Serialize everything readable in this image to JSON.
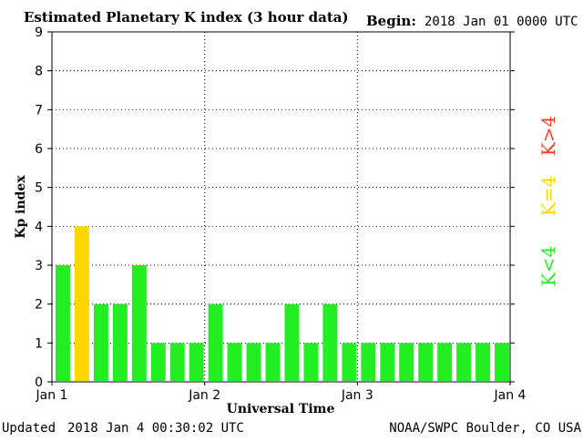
{
  "header": {
    "title": "Estimated Planetary K index (3 hour data)",
    "begin_label": "Begin:",
    "begin_value": "2018 Jan 01 0000 UTC"
  },
  "footer": {
    "updated_label": "Updated",
    "updated_value": "2018 Jan  4 00:30:02 UTC",
    "source": "NOAA/SWPC Boulder, CO USA"
  },
  "legend": {
    "high": "K>4",
    "equal": "K=4",
    "low": "K<4"
  },
  "colors": {
    "below_4": "#22ee22",
    "equal_4": "#ffd700",
    "above_4": "#ff3b1f",
    "grid": "#000000"
  },
  "chart_data": {
    "type": "bar",
    "title": "Estimated Planetary K index (3 hour data)",
    "xlabel": "Universal Time",
    "ylabel": "Kp index",
    "ylim": [
      0,
      9
    ],
    "yticks": [
      "0",
      "1",
      "2",
      "3",
      "4",
      "5",
      "6",
      "7",
      "8",
      "9"
    ],
    "xticks": [
      "Jan 1",
      "Jan 2",
      "Jan 3",
      "Jan 4"
    ],
    "grid": true,
    "interval_hours": 3,
    "values": [
      3,
      4,
      2,
      2,
      3,
      1,
      1,
      1,
      2,
      1,
      1,
      1,
      2,
      1,
      2,
      1,
      1,
      1,
      1,
      1,
      1,
      1,
      1,
      1
    ]
  }
}
